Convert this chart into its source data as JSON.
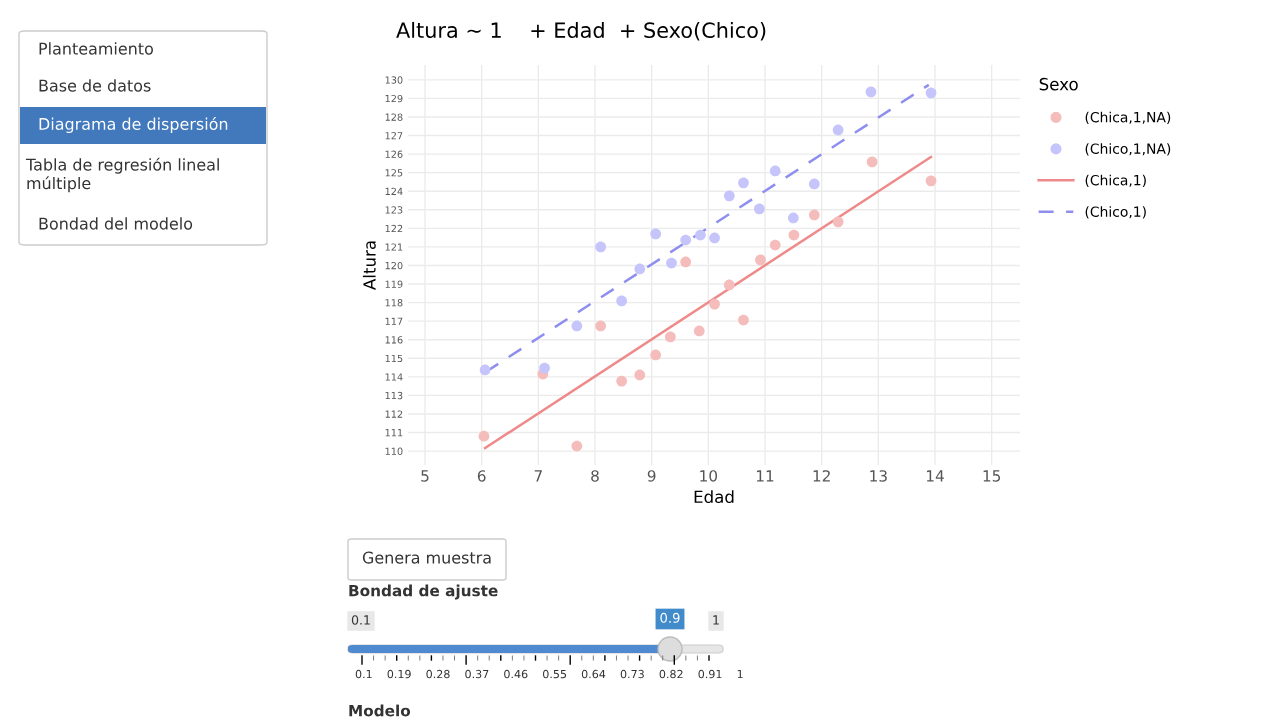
{
  "chart_data": {
    "type": "scatter",
    "title": "Altura ~ 1    + Edad  + Sexo(Chico)",
    "xlabel": "Edad",
    "ylabel": "Altura",
    "legend_title": "Sexo",
    "xlim": [
      4.7,
      15.5
    ],
    "xticks": [
      5,
      6,
      7,
      8,
      9,
      10,
      11,
      12,
      13,
      14,
      15
    ],
    "ylim": [
      109.25,
      130.8
    ],
    "yticks": [
      110,
      111,
      112,
      113,
      114,
      115,
      116,
      117,
      118,
      119,
      120,
      121,
      122,
      123,
      124,
      125,
      126,
      127,
      128,
      129,
      130
    ],
    "grid": true,
    "legend": "right",
    "series": [
      {
        "name": "(Chica,1,NA)",
        "marker": "circle",
        "color": "#f5bcbc",
        "x": [
          6.04,
          7.08,
          7.68,
          8.1,
          8.47,
          8.79,
          9.07,
          9.33,
          9.6,
          9.84,
          10.11,
          10.37,
          10.62,
          10.92,
          11.18,
          11.51,
          11.87,
          12.29,
          12.89,
          13.93
        ],
        "values": [
          110.8,
          114.15,
          110.27,
          116.74,
          113.77,
          114.1,
          115.18,
          116.15,
          120.19,
          116.47,
          117.92,
          118.95,
          117.06,
          120.3,
          121.1,
          121.64,
          122.72,
          122.35,
          125.58,
          124.56
        ]
      },
      {
        "name": "(Chico,1,NA)",
        "marker": "circle",
        "color": "#c5c5fb",
        "x": [
          6.06,
          7.11,
          7.68,
          8.1,
          8.47,
          8.79,
          9.07,
          9.35,
          9.6,
          9.86,
          10.11,
          10.37,
          10.62,
          10.9,
          11.18,
          11.5,
          11.87,
          12.29,
          12.87,
          13.93
        ],
        "values": [
          114.37,
          114.47,
          116.74,
          121.0,
          118.09,
          119.81,
          121.7,
          120.13,
          121.37,
          121.64,
          121.48,
          123.75,
          124.45,
          123.05,
          125.09,
          122.56,
          124.39,
          127.3,
          129.35,
          129.3
        ]
      },
      {
        "name": "(Chica,1)",
        "type": "line",
        "color": "#ee8a8a",
        "line_style": "solid",
        "x": [
          6.06,
          13.93
        ],
        "values": [
          110.16,
          125.85
        ]
      },
      {
        "name": "(Chico,1)",
        "type": "line",
        "color": "#8e8ef0",
        "line_style": "dashed",
        "x": [
          6.07,
          13.89
        ],
        "values": [
          114.26,
          129.73
        ]
      }
    ],
    "annotations": [
      "Planteamiento",
      "Base de datos",
      "Diagrama de dispersión",
      "Tabla de regresión lineal\nmúltiple",
      "Bondad del modelo",
      "Genera muestra",
      "Bondad de ajuste",
      "0.1",
      "0.9",
      "1",
      "0.1 0.19 0.28 0.37 0.46 0.55 0.64 0.73 0.82 0.91 1",
      "Modelo"
    ]
  }
}
